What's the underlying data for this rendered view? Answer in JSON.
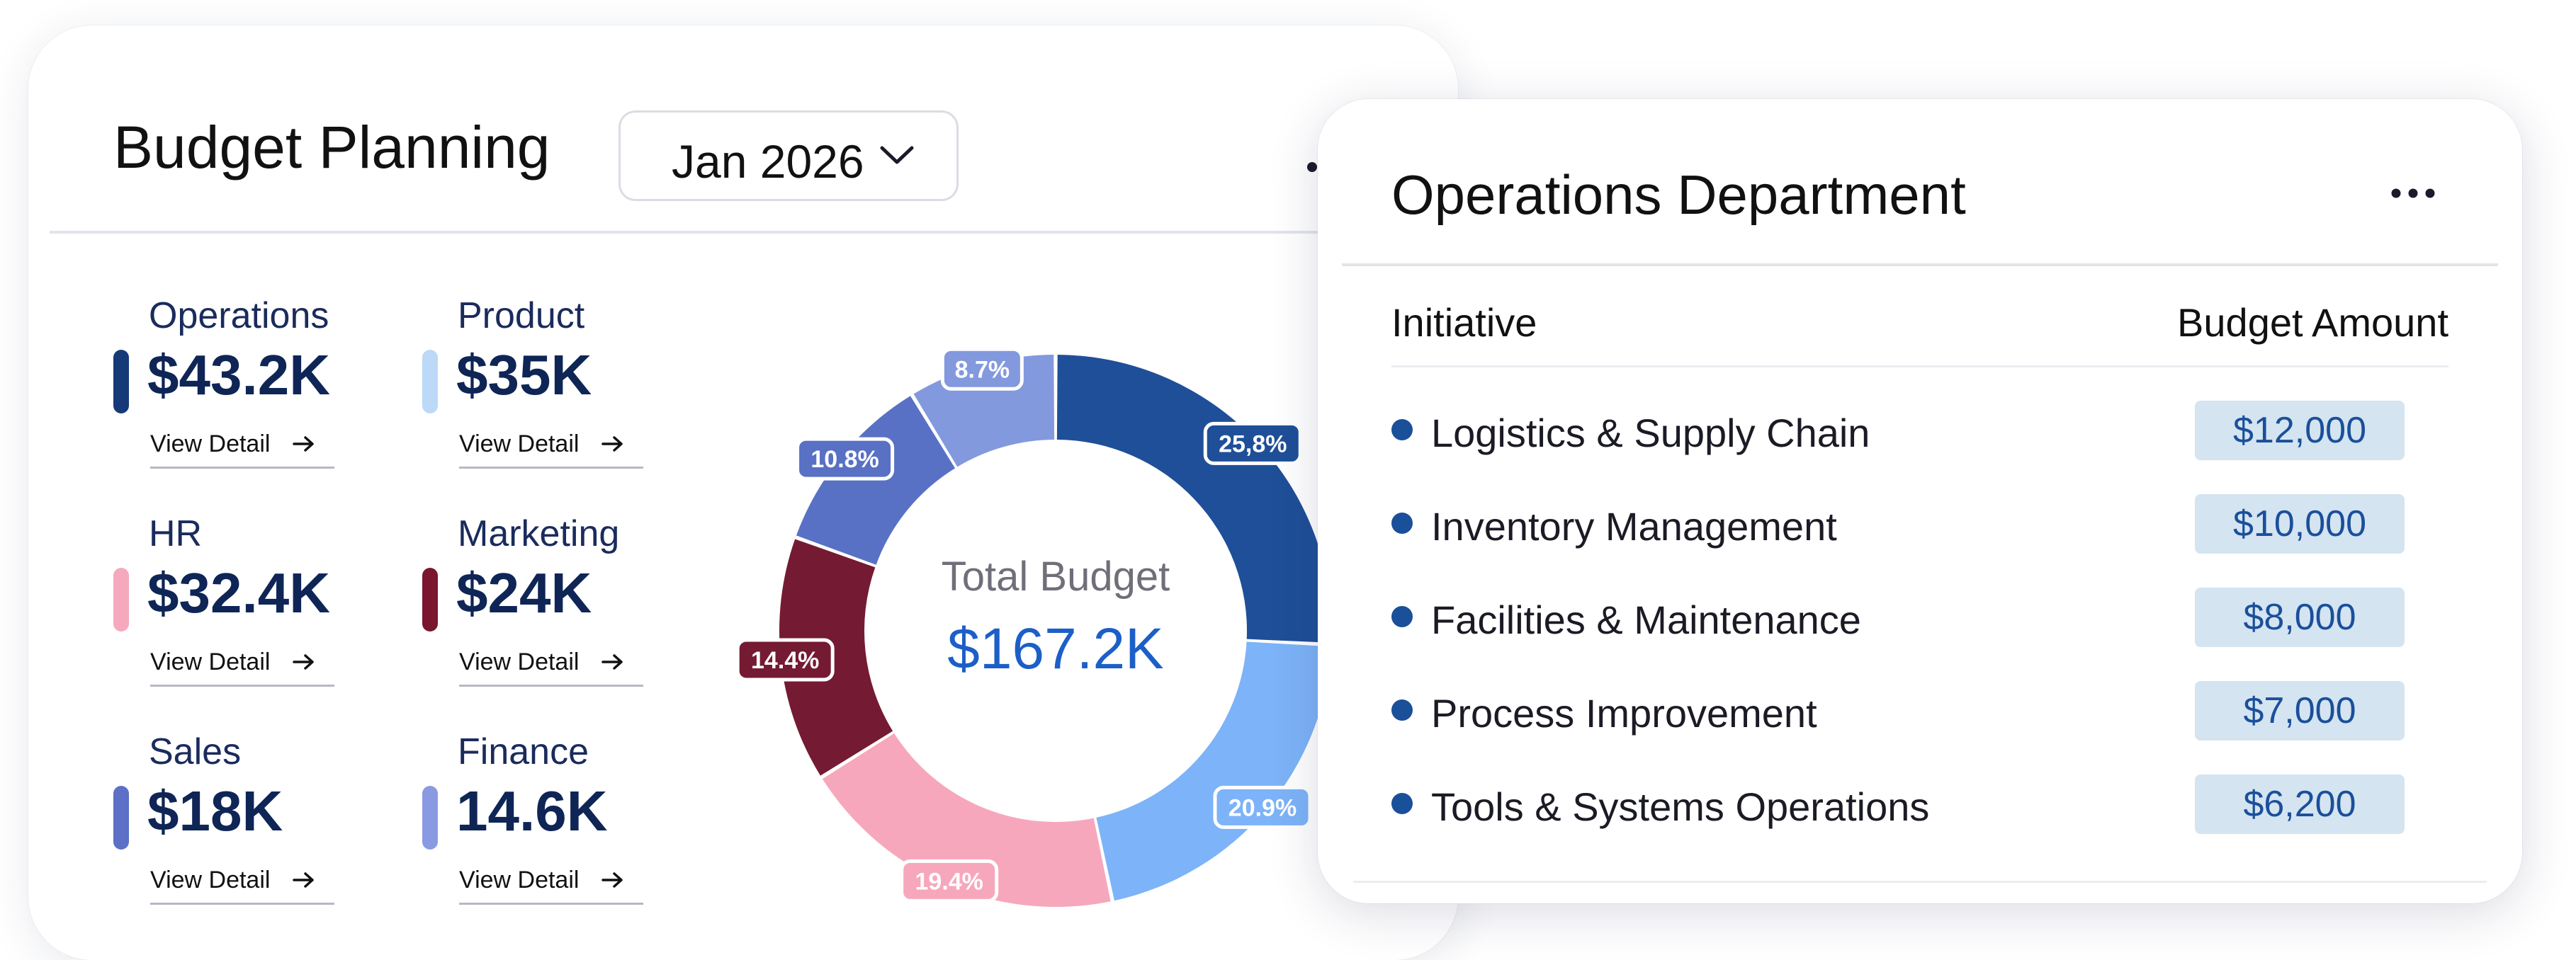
{
  "budget": {
    "title": "Budget Planning",
    "month": "Jan 2026",
    "stats": [
      {
        "label": "Operations",
        "value": "$43.2K",
        "link": "View Detail",
        "color": "#163a78"
      },
      {
        "label": "Product",
        "value": "$35K",
        "link": "View Detail",
        "color": "#bcd9f7"
      },
      {
        "label": "HR",
        "value": "$32.4K",
        "link": "View Detail",
        "color": "#f6a9bd"
      },
      {
        "label": "Marketing",
        "value": "$24K",
        "link": "View Detail",
        "color": "#7a1630"
      },
      {
        "label": "Sales",
        "value": "$18K",
        "link": "View Detail",
        "color": "#5b70c6"
      },
      {
        "label": "Finance",
        "value": "14.6K",
        "link": "View Detail",
        "color": "#8a9ae2"
      }
    ],
    "total_label": "Total Budget",
    "total_value": "$167.2K"
  },
  "chart_data": {
    "type": "pie",
    "donut": true,
    "slices": [
      {
        "label": "25,8%",
        "value": 25.8,
        "color": "#1f4f98"
      },
      {
        "label": "20.9%",
        "value": 20.9,
        "color": "#7db3f8"
      },
      {
        "label": "19.4%",
        "value": 19.4,
        "color": "#f7a7bc"
      },
      {
        "label": "14.4%",
        "value": 14.4,
        "color": "#751a33"
      },
      {
        "label": "10.8%",
        "value": 10.8,
        "color": "#5871c4"
      },
      {
        "label": "8.7%",
        "value": 8.7,
        "color": "#8399de"
      }
    ]
  },
  "operations": {
    "title": "Operations Department",
    "columns": {
      "initiative": "Initiative",
      "amount": "Budget Amount"
    },
    "rows": [
      {
        "name": "Logistics & Supply Chain",
        "amount": "$12,000"
      },
      {
        "name": "Inventory Management",
        "amount": "$10,000"
      },
      {
        "name": "Facilities & Maintenance",
        "amount": "$8,000"
      },
      {
        "name": "Process Improvement",
        "amount": "$7,000"
      },
      {
        "name": "Tools & Systems Operations",
        "amount": "$6,200"
      }
    ]
  },
  "icons": {
    "month_select": "chevron-down-icon",
    "view_detail": "arrow-right-icon",
    "menus": "more-horizontal-icon"
  }
}
